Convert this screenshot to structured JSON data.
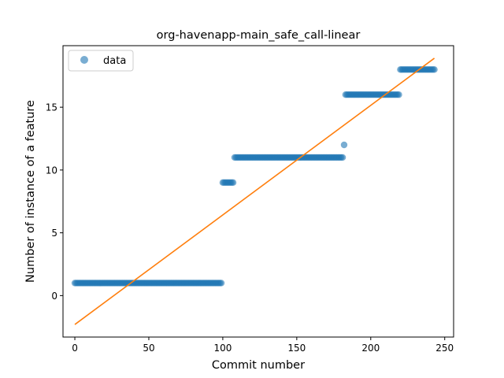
{
  "chart_data": {
    "type": "scatter",
    "title": "org-havenapp-main_safe_call-linear",
    "xlabel": "Commit number",
    "ylabel": "Number of instance of a feature",
    "xlim": [
      -8,
      256
    ],
    "ylim": [
      -3.3,
      19.9
    ],
    "xticks": [
      0,
      50,
      100,
      150,
      200,
      250
    ],
    "yticks": [
      0,
      5,
      10,
      15
    ],
    "grid": false,
    "legend": {
      "position": "top-left",
      "entries": [
        "data"
      ]
    },
    "colors": {
      "data": "#1f77b4",
      "fit": "#ff7f0e"
    },
    "series": [
      {
        "name": "data",
        "kind": "points",
        "segments": [
          {
            "x_start": 0,
            "x_end": 99,
            "y": 1
          },
          {
            "x_start": 100,
            "x_end": 107,
            "y": 9
          },
          {
            "x_start": 108,
            "x_end": 181,
            "y": 11
          },
          {
            "x_start": 182,
            "x_end": 182,
            "y": 12
          },
          {
            "x_start": 183,
            "x_end": 219,
            "y": 16
          },
          {
            "x_start": 220,
            "x_end": 243,
            "y": 18
          }
        ]
      },
      {
        "kind": "line",
        "x": [
          0,
          243
        ],
        "y": [
          -2.3,
          18.9
        ]
      }
    ]
  }
}
